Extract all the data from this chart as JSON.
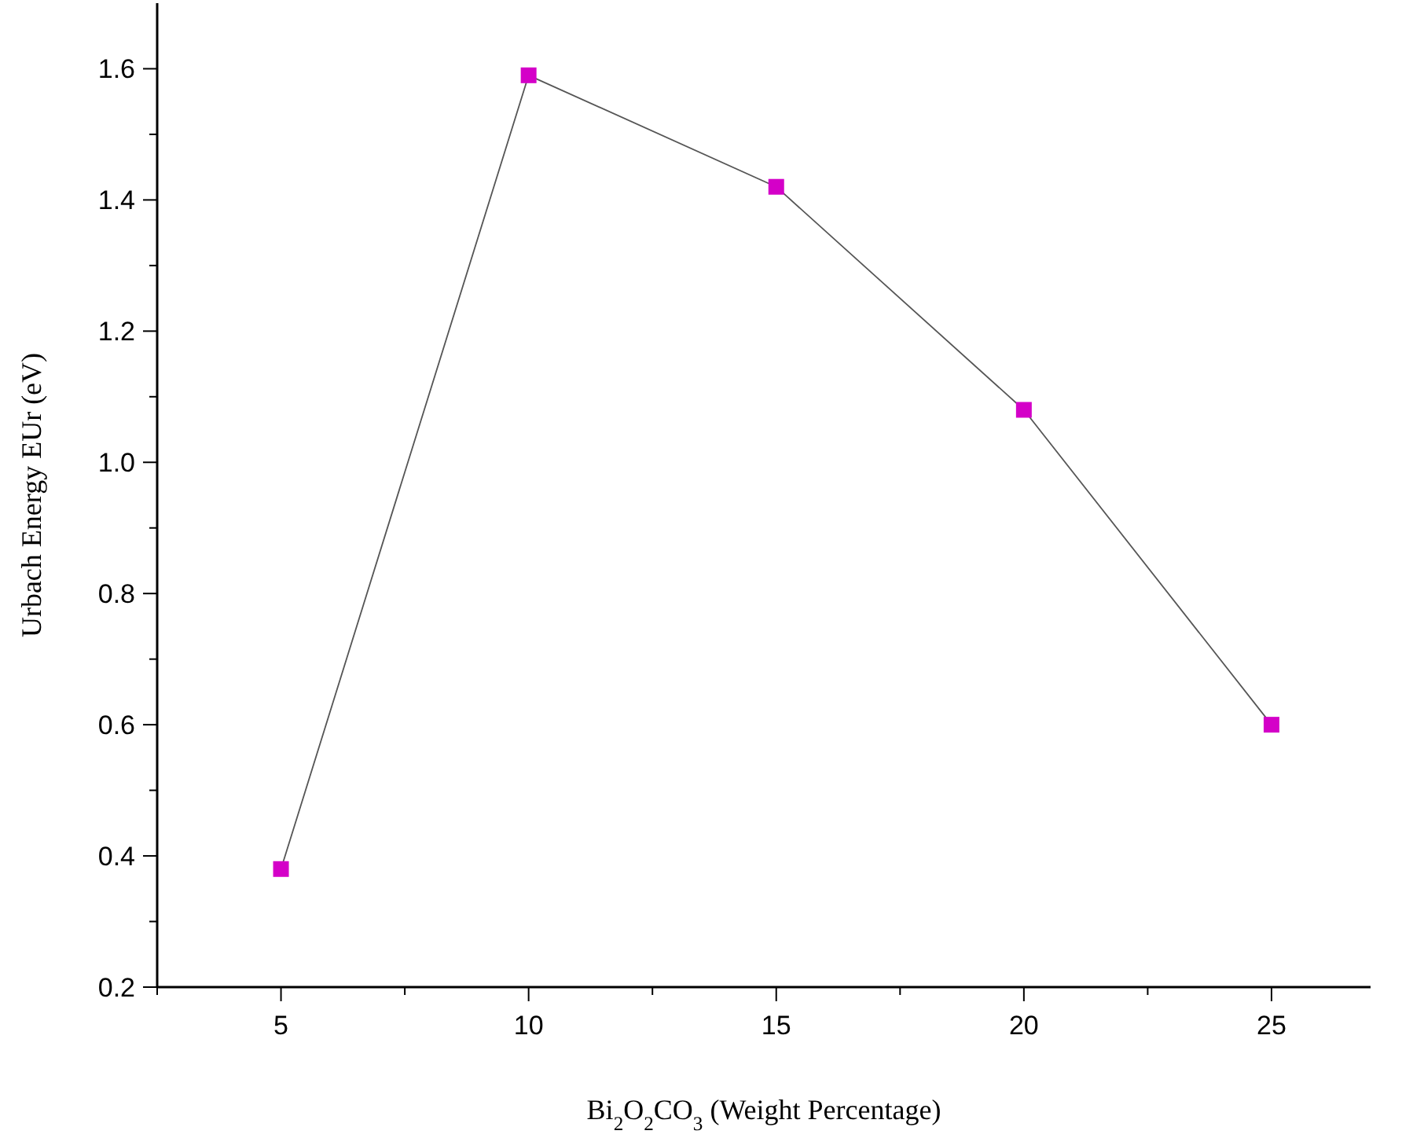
{
  "chart_data": {
    "type": "line",
    "xlabel": "Bi$_{2}$O$_{2}$CO$_{3}$ (Weight Percentage)",
    "ylabel": "Urbach Energy EUr (eV)",
    "x": [
      5,
      10,
      15,
      20,
      25
    ],
    "series": [
      {
        "color": "#d400c8",
        "values": [
          0.38,
          1.59,
          1.42,
          1.08,
          0.6
        ]
      }
    ],
    "xlim": [
      2.5,
      27
    ],
    "ylim": [
      0.2,
      1.7
    ],
    "xticks": [
      {
        "value": 2.5,
        "label": null
      },
      5,
      {
        "value": 7.5,
        "label": null
      },
      10,
      {
        "value": 12.5,
        "label": null
      },
      15,
      {
        "value": 17.5,
        "label": null
      },
      20,
      {
        "value": 22.5,
        "label": null
      },
      25
    ],
    "yticks": [
      {
        "value": 0.2,
        "label": "0.2"
      },
      {
        "value": 0.3,
        "label": null
      },
      {
        "value": 0.4,
        "label": "0.4"
      },
      {
        "value": 0.5,
        "label": null
      },
      {
        "value": 0.6,
        "label": "0.6"
      },
      {
        "value": 0.7,
        "label": null
      },
      {
        "value": 0.8,
        "label": "0.8"
      },
      {
        "value": 0.9,
        "label": null
      },
      {
        "value": 1.0,
        "label": "1.0"
      },
      {
        "value": 1.1,
        "label": null
      },
      {
        "value": 1.2,
        "label": "1.2"
      },
      {
        "value": 1.3,
        "label": null
      },
      {
        "value": 1.4,
        "label": "1.4"
      },
      {
        "value": 1.5,
        "label": null
      },
      {
        "value": 1.6,
        "label": "1.6"
      }
    ],
    "marker": "square",
    "line_style": "solid"
  }
}
